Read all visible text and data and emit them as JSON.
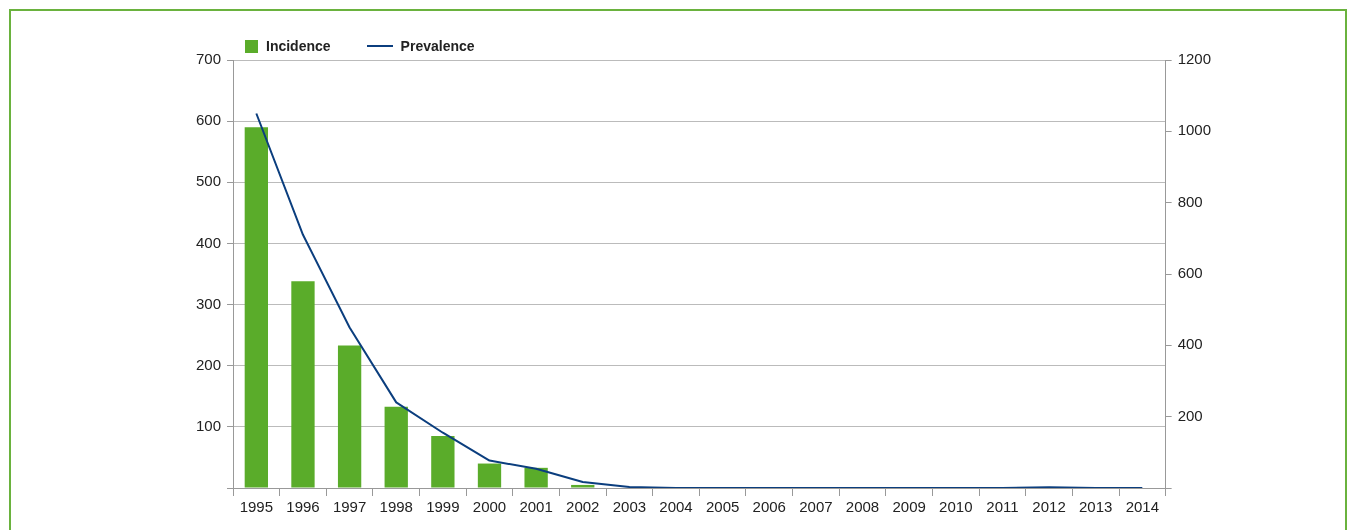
{
  "chart_data": {
    "type": "bar",
    "categories": [
      "1995",
      "1996",
      "1997",
      "1998",
      "1999",
      "2000",
      "2001",
      "2002",
      "2003",
      "2004",
      "2005",
      "2006",
      "2007",
      "2008",
      "2009",
      "2010",
      "2011",
      "2012",
      "2013",
      "2014"
    ],
    "series": [
      {
        "name": "Incidence",
        "color": "#5aac2a",
        "values": [
          590,
          338,
          233,
          133,
          85,
          40,
          33,
          5,
          0,
          0,
          0,
          0,
          0,
          0,
          0,
          0,
          0,
          0,
          0,
          0
        ]
      },
      {
        "name": "Prevalence",
        "type": "line",
        "axis": "y2",
        "color": "#0b3e7e",
        "values": [
          1050,
          710,
          450,
          240,
          155,
          77,
          54,
          17,
          3,
          0,
          0,
          0,
          0,
          0,
          0,
          0,
          0,
          2,
          0,
          0
        ]
      }
    ],
    "ylim": [
      0,
      700
    ],
    "yticks": [
      {
        "value": 0,
        "label": null
      },
      100,
      200,
      300,
      400,
      500,
      600,
      700
    ],
    "y2lim": [
      0,
      1200
    ],
    "y2ticks": [
      {
        "value": 0,
        "label": null
      },
      200,
      400,
      600,
      800,
      1000,
      1200
    ],
    "grid": "y",
    "legend": "top left",
    "marker": "none",
    "line_style": "solid"
  }
}
